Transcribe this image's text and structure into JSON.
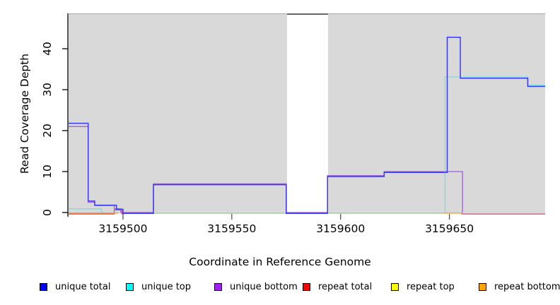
{
  "figure": {
    "x_axis_title": "Coordinate in Reference Genome",
    "y_axis_title": "Read Coverage Depth"
  },
  "legend": {
    "items": [
      {
        "label": "unique total",
        "swatch_color": "#0000FF"
      },
      {
        "label": "unique top",
        "swatch_color": "#00FFFF"
      },
      {
        "label": "unique bottom",
        "swatch_color": "#A020F0"
      },
      {
        "label": "repeat total",
        "swatch_color": "#FF0000"
      },
      {
        "label": "repeat top",
        "swatch_color": "#FFFF00"
      },
      {
        "label": "repeat bottom",
        "swatch_color": "#FFA500"
      }
    ]
  },
  "chart_data": {
    "type": "line",
    "title": "",
    "xlabel": "Coordinate in Reference Genome",
    "ylabel": "Read Coverage Depth",
    "xlim": [
      3159475,
      3159694
    ],
    "ylim": [
      0,
      48.5
    ],
    "x_ticks": [
      3159500,
      3159550,
      3159600,
      3159650
    ],
    "y_ticks": [
      0,
      10,
      20,
      30,
      40
    ],
    "grid": false,
    "legend_position": "bottom",
    "background_panels": [
      {
        "x1": 3159475,
        "x2": 3159575.4,
        "color": "#d9d9d9"
      },
      {
        "x1": 3159594.2,
        "x2": 3159694,
        "color": "#d9d9d9"
      }
    ],
    "no_data_gap": {
      "x1": 3159575.4,
      "x2": 3159594.2
    },
    "series": [
      {
        "name": "repeat-total",
        "legend_label": "repeat total",
        "line_color": "#E05878",
        "dy": 2.2,
        "lw": 1.3,
        "segments": [
          [
            [
              3159475,
              0
            ],
            [
              3159496,
              0
            ],
            [
              3159496,
              1
            ],
            [
              3159499.5,
              1
            ],
            [
              3159499.5,
              0
            ],
            [
              3159500.5,
              0
            ]
          ],
          [
            [
              3159655.5,
              0
            ],
            [
              3159694,
              0
            ]
          ]
        ]
      },
      {
        "name": "zero-baseline-blend",
        "legend_label": null,
        "line_color": "#96C896",
        "dy": 1.0,
        "lw": 1.3,
        "segments": [
          [
            [
              3159500,
              0
            ],
            [
              3159649,
              0
            ]
          ]
        ]
      },
      {
        "name": "repeat-bottom",
        "legend_label": "repeat bottom",
        "line_color": "#FF9C20",
        "dy": 0.8,
        "lw": 1.4,
        "segments": [
          [
            [
              3159475,
              0
            ],
            [
              3159498,
              0
            ]
          ],
          [
            [
              3159647,
              0
            ],
            [
              3159656,
              0
            ]
          ]
        ]
      },
      {
        "name": "unique-bottom",
        "legend_label": "unique bottom",
        "line_color": "#9A60D8",
        "dy": 0,
        "lw": 1.3,
        "segments": [
          [
            [
              3159475,
              21
            ],
            [
              3159484,
              21
            ],
            [
              3159484,
              2.5
            ],
            [
              3159487,
              2.5
            ],
            [
              3159487,
              1.7
            ],
            [
              3159496,
              1.7
            ],
            [
              3159496,
              0.9
            ],
            [
              3159499,
              0.9
            ],
            [
              3159499,
              0
            ],
            [
              3159514,
              0
            ],
            [
              3159514,
              7
            ],
            [
              3159575,
              7
            ],
            [
              3159575,
              0
            ],
            [
              3159594,
              0
            ],
            [
              3159594,
              9
            ],
            [
              3159620,
              9
            ],
            [
              3159620,
              10
            ],
            [
              3159656,
              10
            ],
            [
              3159656,
              0
            ]
          ]
        ]
      },
      {
        "name": "unique-top",
        "legend_label": "unique top",
        "line_color": "#7FDCDC",
        "dy": -0.6,
        "lw": 1.3,
        "segments": [
          [
            [
              3159475,
              0.8
            ],
            [
              3159490,
              0.8
            ],
            [
              3159490,
              0
            ],
            [
              3159491,
              0
            ]
          ],
          [
            [
              3159648,
              0
            ],
            [
              3159648,
              33
            ],
            [
              3159686,
              33
            ],
            [
              3159686,
              31
            ],
            [
              3159694,
              31
            ]
          ]
        ]
      },
      {
        "name": "unique-total",
        "legend_label": "unique total",
        "line_color": "#3B3BEE",
        "dy": 1.2,
        "lw": 1.5,
        "segments": [
          [
            [
              3159475,
              22
            ],
            [
              3159484,
              22
            ],
            [
              3159484,
              3
            ],
            [
              3159487,
              3
            ],
            [
              3159487,
              2
            ],
            [
              3159497,
              2
            ],
            [
              3159497,
              1
            ],
            [
              3159500,
              1
            ],
            [
              3159500,
              0
            ],
            [
              3159514,
              0
            ],
            [
              3159514,
              7
            ],
            [
              3159575,
              7
            ],
            [
              3159575,
              0
            ],
            [
              3159594,
              0
            ],
            [
              3159594,
              9
            ],
            [
              3159620,
              9
            ],
            [
              3159620,
              10
            ],
            [
              3159649,
              10
            ],
            [
              3159649,
              43
            ],
            [
              3159655,
              43
            ],
            [
              3159655,
              33
            ],
            [
              3159686,
              33
            ],
            [
              3159686,
              31
            ],
            [
              3159694,
              31
            ]
          ]
        ]
      }
    ]
  }
}
